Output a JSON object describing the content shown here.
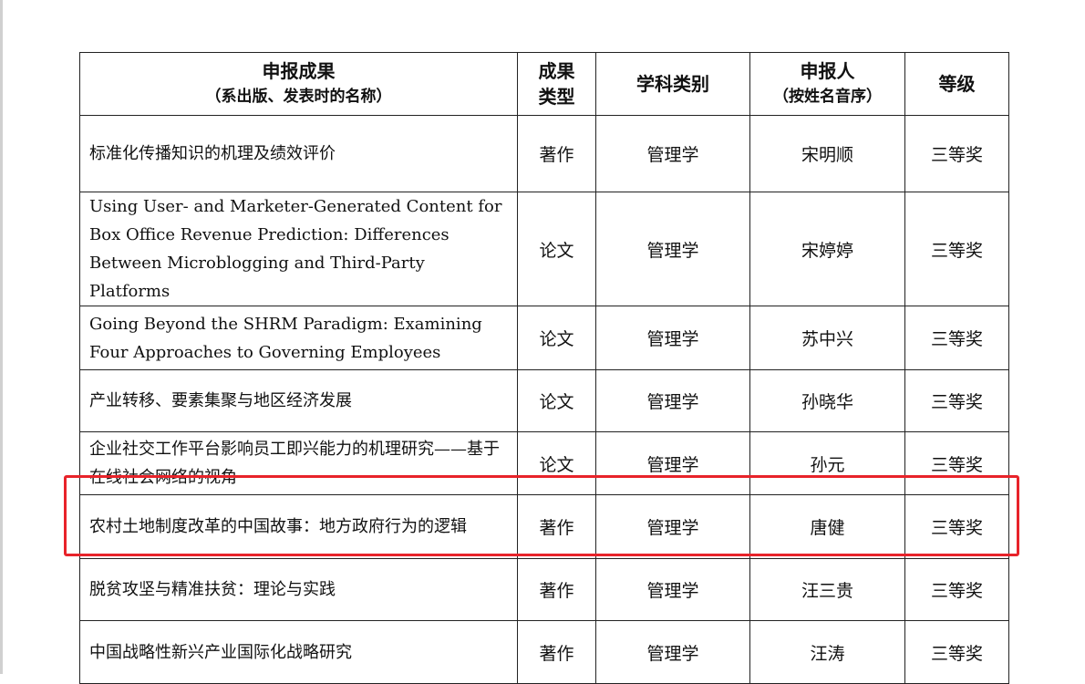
{
  "headers": {
    "title": "申报成果",
    "title_sub": "（系出版、发表时的名称）",
    "type_l1": "成果",
    "type_l2": "类型",
    "discipline": "学科类别",
    "applicant": "申报人",
    "applicant_sub": "（按姓名音序）",
    "level": "等级"
  },
  "rows": [
    {
      "title": "标准化传播知识的机理及绩效评价",
      "type": "著作",
      "discipline": "管理学",
      "applicant": "宋明顺",
      "level": "三等奖"
    },
    {
      "title": "Using User- and Marketer-Generated Content for Box Office Revenue Prediction: Differences Between Microblogging and Third-Party Platforms",
      "type": "论文",
      "discipline": "管理学",
      "applicant": "宋婷婷",
      "level": "三等奖"
    },
    {
      "title": "Going Beyond the SHRM Paradigm: Examining Four Approaches to Governing Employees",
      "type": "论文",
      "discipline": "管理学",
      "applicant": "苏中兴",
      "level": "三等奖"
    },
    {
      "title": "产业转移、要素集聚与地区经济发展",
      "type": "论文",
      "discipline": "管理学",
      "applicant": "孙晓华",
      "level": "三等奖"
    },
    {
      "title": "企业社交工作平台影响员工即兴能力的机理研究——基于在线社会网络的视角",
      "type": "论文",
      "discipline": "管理学",
      "applicant": "孙元",
      "level": "三等奖"
    },
    {
      "title": "农村土地制度改革的中国故事：地方政府行为的逻辑",
      "type": "著作",
      "discipline": "管理学",
      "applicant": "唐健",
      "level": "三等奖"
    },
    {
      "title": "脱贫攻坚与精准扶贫：理论与实践",
      "type": "著作",
      "discipline": "管理学",
      "applicant": "汪三贵",
      "level": "三等奖"
    },
    {
      "title": "中国战略性新兴产业国际化战略研究",
      "type": "著作",
      "discipline": "管理学",
      "applicant": "汪涛",
      "level": "三等奖"
    }
  ],
  "highlight": {
    "row_index": 5,
    "color": "#e8232a"
  }
}
